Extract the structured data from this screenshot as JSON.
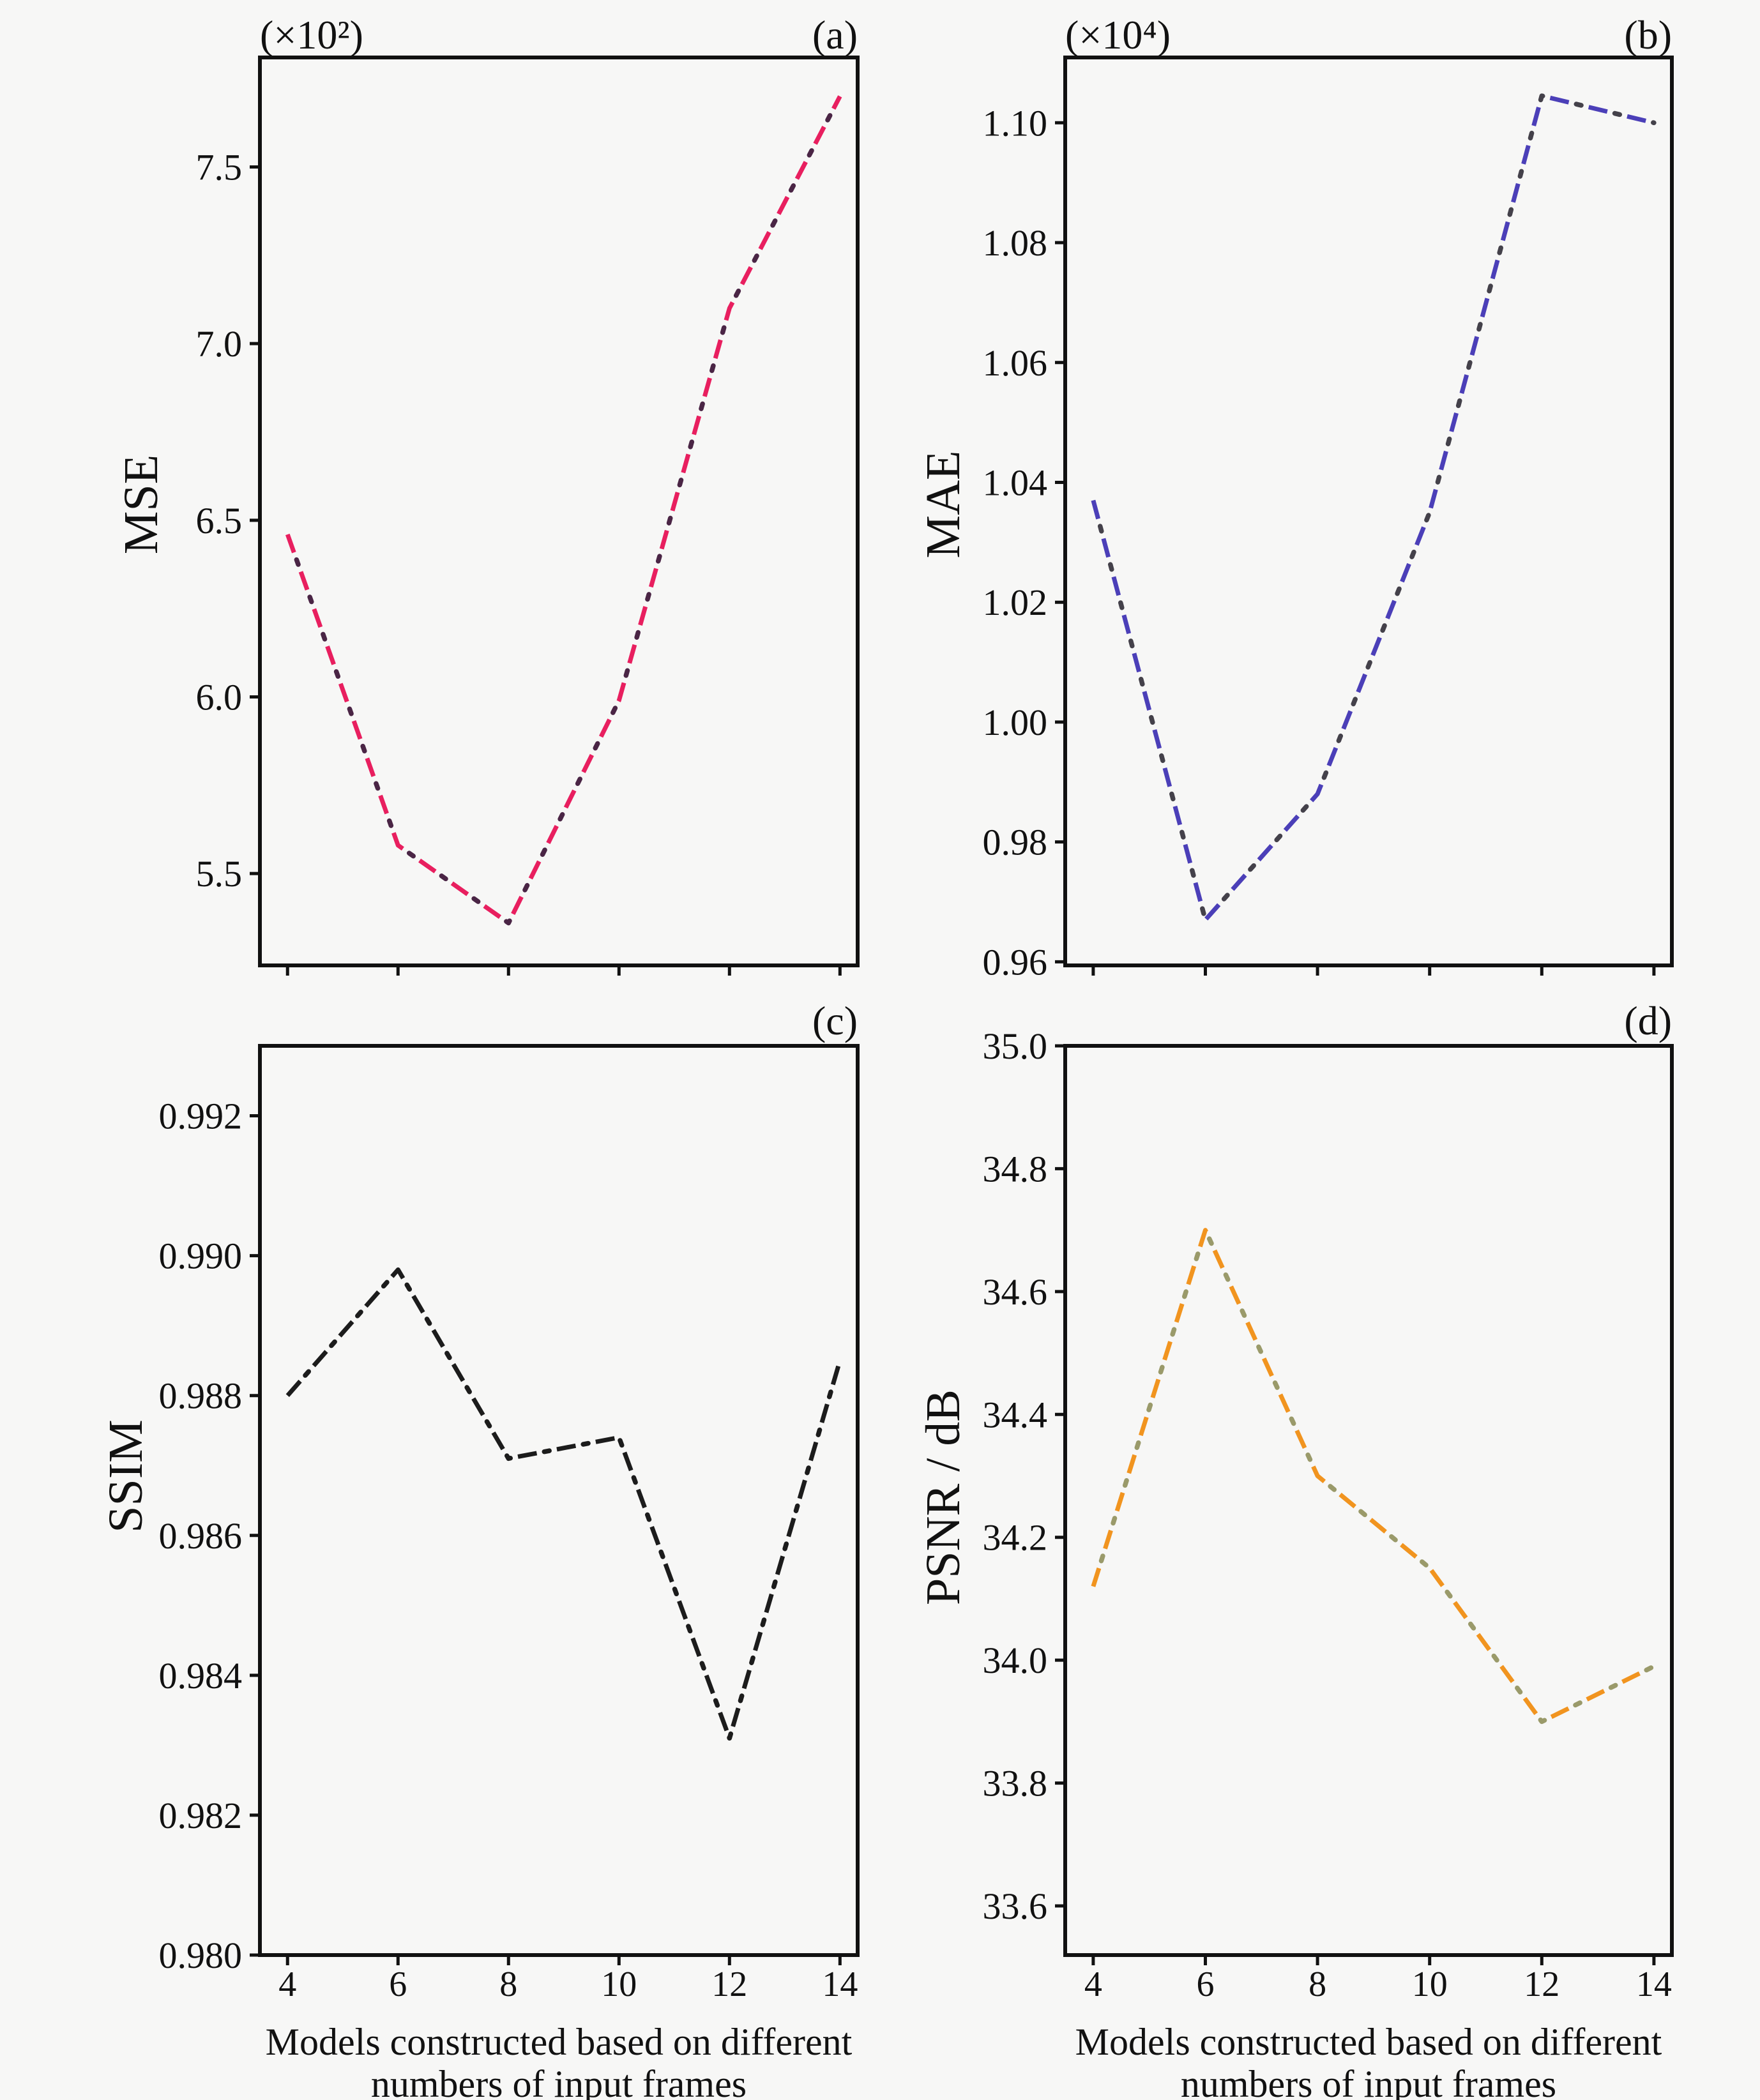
{
  "figure": {
    "background": "#f7f7f6",
    "caption_line1": "Models constructed  based on different",
    "caption_line2": "numbers of input frames"
  },
  "chart_data": [
    {
      "type": "line",
      "panel_label": "(a)",
      "scale_label": "(×10²)",
      "ylabel": "MSE",
      "xlabel": "Models constructed based on different numbers of input frames",
      "x": [
        4,
        6,
        8,
        10,
        12,
        14
      ],
      "y": [
        6.46,
        5.58,
        5.36,
        5.99,
        7.1,
        7.7
      ],
      "xticks": [
        4,
        6,
        8,
        10,
        12,
        14
      ],
      "yticks": [
        5.5,
        6.0,
        6.5,
        7.0,
        7.5
      ],
      "ytick_decimals": 1,
      "xlim": [
        3.5,
        14.32
      ],
      "ylim": [
        5.24,
        7.81
      ],
      "show_xtick_labels": false,
      "grid": false,
      "legend": null,
      "line_style": "dash-dot",
      "line_color": "#e81f5f",
      "dot_color": "#4a2545"
    },
    {
      "type": "line",
      "panel_label": "(b)",
      "scale_label": "(×10⁴)",
      "ylabel": "MAE",
      "xlabel": "Models constructed based on different numbers of input frames",
      "x": [
        4,
        6,
        8,
        10,
        12,
        14
      ],
      "y": [
        1.037,
        0.967,
        0.988,
        1.035,
        1.1045,
        1.1
      ],
      "xticks": [
        4,
        6,
        8,
        10,
        12,
        14
      ],
      "yticks": [
        0.96,
        0.98,
        1.0,
        1.02,
        1.04,
        1.06,
        1.08,
        1.1
      ],
      "ytick_decimals": 2,
      "xlim": [
        3.5,
        14.32
      ],
      "ylim": [
        0.9594,
        1.1109
      ],
      "show_xtick_labels": false,
      "grid": false,
      "legend": null,
      "line_style": "dash-dot",
      "line_color": "#4b3fb8",
      "dot_color": "#44414a"
    },
    {
      "type": "line",
      "panel_label": "(c)",
      "scale_label": "",
      "ylabel": "SSIM",
      "xlabel": "Models constructed based on different numbers of input frames",
      "x": [
        4,
        6,
        8,
        10,
        12,
        14
      ],
      "y": [
        0.988,
        0.9898,
        0.9871,
        0.9874,
        0.9831,
        0.9885
      ],
      "xticks": [
        4,
        6,
        8,
        10,
        12,
        14
      ],
      "yticks": [
        0.98,
        0.982,
        0.984,
        0.986,
        0.988,
        0.99,
        0.992
      ],
      "ytick_decimals": 3,
      "xlim": [
        3.5,
        14.32
      ],
      "ylim": [
        0.98,
        0.993
      ],
      "show_xtick_labels": true,
      "grid": false,
      "legend": null,
      "line_style": "dash-dot",
      "line_color": "#1c1c1c",
      "dot_color": "#1c1c1c"
    },
    {
      "type": "line",
      "panel_label": "(d)",
      "scale_label": "",
      "ylabel": "PSNR / dB",
      "xlabel": "Models constructed based on different numbers of input frames",
      "x": [
        4,
        6,
        8,
        10,
        12,
        14
      ],
      "y": [
        34.12,
        34.7,
        34.3,
        34.15,
        33.9,
        33.99
      ],
      "xticks": [
        4,
        6,
        8,
        10,
        12,
        14
      ],
      "yticks": [
        33.6,
        33.8,
        34.0,
        34.2,
        34.4,
        34.6,
        34.8,
        35.0
      ],
      "ytick_decimals": 1,
      "xlim": [
        3.5,
        14.32
      ],
      "ylim": [
        33.52,
        35.0
      ],
      "show_xtick_labels": true,
      "grid": false,
      "legend": null,
      "line_style": "dash-dot",
      "line_color": "#f1941f",
      "dot_color": "#9a9a6a"
    }
  ]
}
